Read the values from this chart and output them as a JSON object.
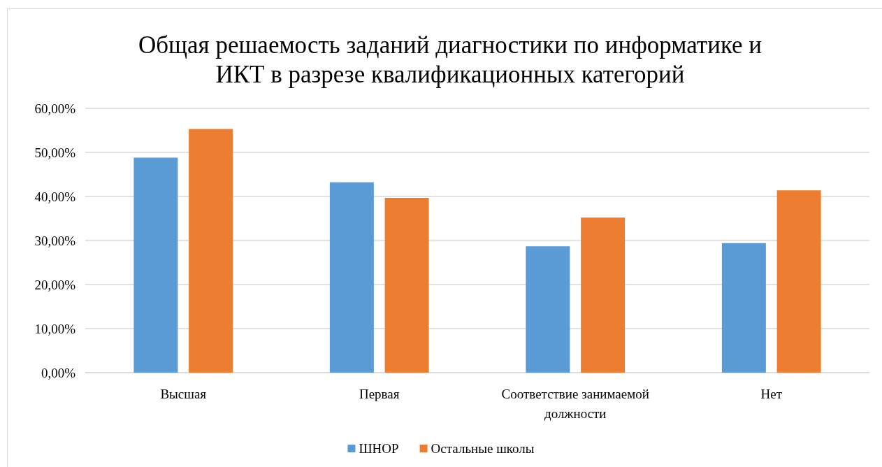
{
  "chart_data": {
    "type": "bar",
    "title": "Общая решаемость заданий диагностики по информатике и ИКТ в разрезе квалификационных категорий",
    "categories": [
      "Высшая",
      "Первая",
      "Соответствие занимаемой должности",
      "Нет"
    ],
    "series": [
      {
        "name": "ШНОР",
        "color": "#5b9bd5",
        "values": [
          48.8,
          43.2,
          28.7,
          29.4
        ]
      },
      {
        "name": "Остальные школы",
        "color": "#ed7d31",
        "values": [
          55.3,
          39.7,
          35.2,
          41.4
        ]
      }
    ],
    "ylim": [
      0,
      60
    ],
    "yticks": [
      {
        "value": 0,
        "label": "0,00%"
      },
      {
        "value": 10,
        "label": "10,00%"
      },
      {
        "value": 20,
        "label": "20,00%"
      },
      {
        "value": 30,
        "label": "30,00%"
      },
      {
        "value": 40,
        "label": "40,00%"
      },
      {
        "value": 50,
        "label": "50,00%"
      },
      {
        "value": 60,
        "label": "60,00%"
      }
    ],
    "grid": "y",
    "legend": "bottom"
  }
}
